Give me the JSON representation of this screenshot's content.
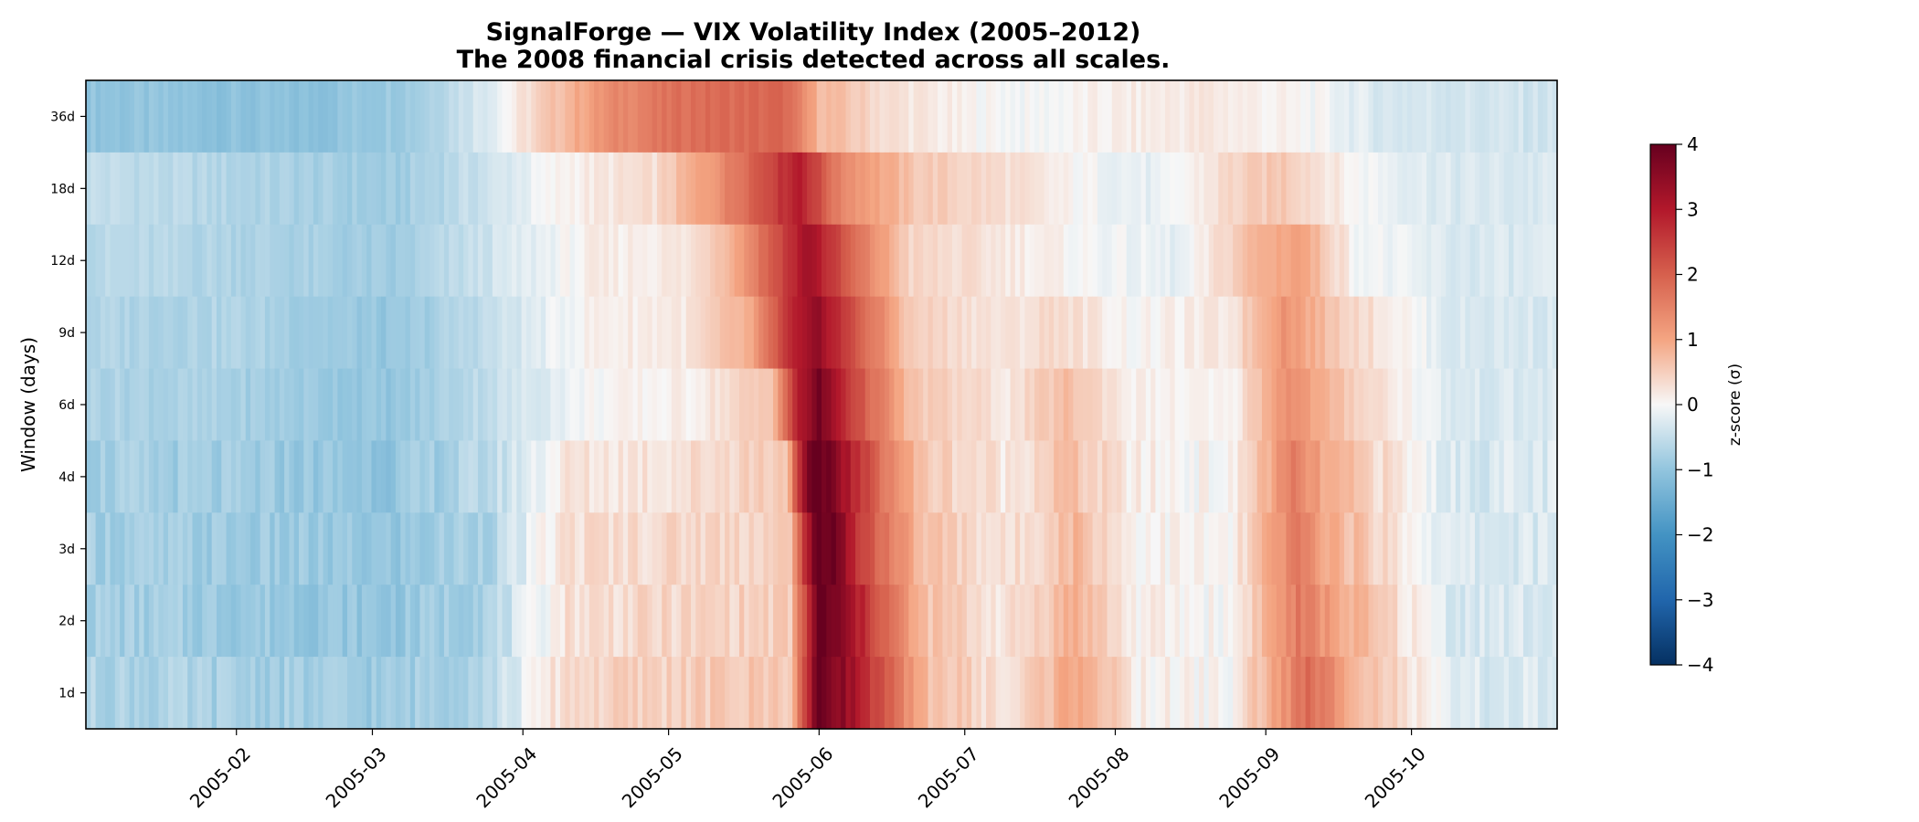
{
  "chart_data": {
    "type": "heatmap",
    "title": "SignalForge — VIX Volatility Index (2005–2012)",
    "subtitle": "The 2008 financial crisis detected across all scales.",
    "xlabel": "",
    "ylabel": "Window (days)",
    "x_start": "2005-01-01",
    "x_end": "2005-10-31",
    "x_ticks": [
      "2005-02",
      "2005-03",
      "2005-04",
      "2005-05",
      "2005-06",
      "2005-07",
      "2005-08",
      "2005-09",
      "2005-10"
    ],
    "x_tick_dates": [
      "2005-02-01",
      "2005-03-01",
      "2005-04-01",
      "2005-05-01",
      "2005-06-01",
      "2005-07-01",
      "2005-08-01",
      "2005-09-01",
      "2005-10-01"
    ],
    "y_categories": [
      "36d",
      "18d",
      "12d",
      "9d",
      "6d",
      "4d",
      "3d",
      "2d",
      "1d"
    ],
    "colorbar": {
      "label": "z-score (σ)",
      "range": [
        -4,
        4
      ],
      "ticks": [
        "4",
        "3",
        "2",
        "1",
        "0",
        "−1",
        "−2",
        "−3",
        "−4"
      ],
      "colormap": "RdBu_r"
    },
    "rows": [
      {
        "window": "36d",
        "points": [
          [
            "2005-01-01",
            -1.0
          ],
          [
            "2005-02-15",
            -1.1
          ],
          [
            "2005-03-10",
            -0.8
          ],
          [
            "2005-03-25",
            -0.2
          ],
          [
            "2005-04-05",
            0.5
          ],
          [
            "2005-04-20",
            1.4
          ],
          [
            "2005-05-05",
            1.8
          ],
          [
            "2005-05-25",
            1.9
          ],
          [
            "2005-06-01",
            0.8
          ],
          [
            "2005-06-15",
            0.3
          ],
          [
            "2005-07-01",
            0.05
          ],
          [
            "2005-07-15",
            -0.05
          ],
          [
            "2005-08-01",
            0.1
          ],
          [
            "2005-08-20",
            0.2
          ],
          [
            "2005-09-10",
            0.0
          ],
          [
            "2005-09-25",
            -0.3
          ],
          [
            "2005-10-31",
            -0.4
          ]
        ]
      },
      {
        "window": "18d",
        "points": [
          [
            "2005-01-01",
            -0.5
          ],
          [
            "2005-02-01",
            -0.7
          ],
          [
            "2005-03-05",
            -0.9
          ],
          [
            "2005-03-25",
            -0.4
          ],
          [
            "2005-04-10",
            0.1
          ],
          [
            "2005-04-28",
            0.3
          ],
          [
            "2005-05-10",
            1.2
          ],
          [
            "2005-05-20",
            2.2
          ],
          [
            "2005-05-28",
            3.0
          ],
          [
            "2005-06-05",
            1.5
          ],
          [
            "2005-06-20",
            0.6
          ],
          [
            "2005-07-10",
            0.3
          ],
          [
            "2005-07-25",
            0.0
          ],
          [
            "2005-08-10",
            -0.2
          ],
          [
            "2005-08-25",
            0.4
          ],
          [
            "2005-09-05",
            0.6
          ],
          [
            "2005-09-20",
            0.0
          ],
          [
            "2005-10-10",
            -0.3
          ],
          [
            "2005-10-31",
            -0.3
          ]
        ]
      },
      {
        "window": "12d",
        "points": [
          [
            "2005-01-01",
            -0.6
          ],
          [
            "2005-02-01",
            -0.7
          ],
          [
            "2005-03-05",
            -0.9
          ],
          [
            "2005-03-25",
            -0.4
          ],
          [
            "2005-04-15",
            0.1
          ],
          [
            "2005-05-05",
            0.2
          ],
          [
            "2005-05-15",
            1.0
          ],
          [
            "2005-05-25",
            2.5
          ],
          [
            "2005-05-30",
            3.3
          ],
          [
            "2005-06-08",
            1.8
          ],
          [
            "2005-06-20",
            0.4
          ],
          [
            "2005-07-10",
            0.2
          ],
          [
            "2005-07-25",
            0.0
          ],
          [
            "2005-08-15",
            -0.2
          ],
          [
            "2005-08-30",
            0.8
          ],
          [
            "2005-09-08",
            1.1
          ],
          [
            "2005-09-20",
            0.0
          ],
          [
            "2005-10-10",
            -0.3
          ],
          [
            "2005-10-31",
            -0.3
          ]
        ]
      },
      {
        "window": "9d",
        "points": [
          [
            "2005-01-01",
            -0.7
          ],
          [
            "2005-02-01",
            -0.7
          ],
          [
            "2005-03-05",
            -1.0
          ],
          [
            "2005-03-25",
            -0.5
          ],
          [
            "2005-04-15",
            0.1
          ],
          [
            "2005-05-05",
            0.2
          ],
          [
            "2005-05-18",
            0.9
          ],
          [
            "2005-05-26",
            2.7
          ],
          [
            "2005-06-01",
            3.4
          ],
          [
            "2005-06-08",
            2.2
          ],
          [
            "2005-06-20",
            0.5
          ],
          [
            "2005-07-10",
            0.2
          ],
          [
            "2005-07-20",
            0.4
          ],
          [
            "2005-08-05",
            0.0
          ],
          [
            "2005-08-25",
            0.2
          ],
          [
            "2005-09-05",
            1.3
          ],
          [
            "2005-09-15",
            0.6
          ],
          [
            "2005-10-10",
            -0.3
          ],
          [
            "2005-10-31",
            -0.3
          ]
        ]
      },
      {
        "window": "6d",
        "points": [
          [
            "2005-01-01",
            -0.7
          ],
          [
            "2005-02-01",
            -0.8
          ],
          [
            "2005-03-05",
            -1.0
          ],
          [
            "2005-03-25",
            -0.5
          ],
          [
            "2005-04-15",
            0.0
          ],
          [
            "2005-05-05",
            0.1
          ],
          [
            "2005-05-22",
            0.6
          ],
          [
            "2005-05-28",
            3.0
          ],
          [
            "2005-06-01",
            3.8
          ],
          [
            "2005-06-08",
            2.4
          ],
          [
            "2005-06-20",
            0.6
          ],
          [
            "2005-07-10",
            0.2
          ],
          [
            "2005-07-22",
            0.7
          ],
          [
            "2005-08-05",
            0.1
          ],
          [
            "2005-08-25",
            0.0
          ],
          [
            "2005-09-06",
            1.4
          ],
          [
            "2005-09-15",
            0.7
          ],
          [
            "2005-10-10",
            -0.3
          ],
          [
            "2005-10-31",
            -0.3
          ]
        ]
      },
      {
        "window": "4d",
        "points": [
          [
            "2005-01-01",
            -0.8
          ],
          [
            "2005-02-01",
            -0.9
          ],
          [
            "2005-03-05",
            -1.0
          ],
          [
            "2005-03-25",
            -0.6
          ],
          [
            "2005-04-10",
            0.2
          ],
          [
            "2005-05-05",
            0.3
          ],
          [
            "2005-05-25",
            0.6
          ],
          [
            "2005-05-30",
            3.8
          ],
          [
            "2005-06-03",
            3.9
          ],
          [
            "2005-06-10",
            2.4
          ],
          [
            "2005-06-22",
            0.6
          ],
          [
            "2005-07-10",
            0.2
          ],
          [
            "2005-07-22",
            0.7
          ],
          [
            "2005-08-05",
            0.1
          ],
          [
            "2005-08-25",
            0.0
          ],
          [
            "2005-09-07",
            1.5
          ],
          [
            "2005-09-15",
            0.8
          ],
          [
            "2005-10-10",
            -0.3
          ],
          [
            "2005-10-31",
            -0.3
          ]
        ]
      },
      {
        "window": "3d",
        "points": [
          [
            "2005-01-01",
            -0.8
          ],
          [
            "2005-02-01",
            -0.9
          ],
          [
            "2005-03-05",
            -1.0
          ],
          [
            "2005-03-25",
            -0.7
          ],
          [
            "2005-04-10",
            0.3
          ],
          [
            "2005-05-05",
            0.4
          ],
          [
            "2005-05-26",
            0.5
          ],
          [
            "2005-05-31",
            4.0
          ],
          [
            "2005-06-04",
            3.9
          ],
          [
            "2005-06-10",
            2.4
          ],
          [
            "2005-06-22",
            0.7
          ],
          [
            "2005-07-10",
            0.2
          ],
          [
            "2005-07-24",
            0.8
          ],
          [
            "2005-08-05",
            0.1
          ],
          [
            "2005-08-25",
            0.0
          ],
          [
            "2005-09-08",
            1.6
          ],
          [
            "2005-09-15",
            0.9
          ],
          [
            "2005-10-10",
            -0.3
          ],
          [
            "2005-10-31",
            -0.3
          ]
        ]
      },
      {
        "window": "2d",
        "points": [
          [
            "2005-01-01",
            -0.8
          ],
          [
            "2005-02-01",
            -0.9
          ],
          [
            "2005-03-05",
            -1.0
          ],
          [
            "2005-03-25",
            -0.7
          ],
          [
            "2005-04-10",
            0.3
          ],
          [
            "2005-05-05",
            0.4
          ],
          [
            "2005-05-26",
            0.5
          ],
          [
            "2005-06-01",
            4.0
          ],
          [
            "2005-06-05",
            3.6
          ],
          [
            "2005-06-12",
            2.4
          ],
          [
            "2005-06-22",
            0.7
          ],
          [
            "2005-07-10",
            0.2
          ],
          [
            "2005-07-24",
            0.9
          ],
          [
            "2005-08-05",
            0.1
          ],
          [
            "2005-08-25",
            0.0
          ],
          [
            "2005-09-08",
            1.6
          ],
          [
            "2005-09-18",
            0.9
          ],
          [
            "2005-10-10",
            -0.3
          ],
          [
            "2005-10-31",
            -0.3
          ]
        ]
      },
      {
        "window": "1d",
        "points": [
          [
            "2005-01-01",
            -0.7
          ],
          [
            "2005-02-01",
            -0.8
          ],
          [
            "2005-03-05",
            -0.9
          ],
          [
            "2005-03-25",
            -0.6
          ],
          [
            "2005-04-10",
            0.4
          ],
          [
            "2005-05-05",
            0.5
          ],
          [
            "2005-05-26",
            0.6
          ],
          [
            "2005-06-01",
            4.0
          ],
          [
            "2005-06-06",
            3.5
          ],
          [
            "2005-06-12",
            2.5
          ],
          [
            "2005-06-22",
            0.8
          ],
          [
            "2005-07-10",
            0.2
          ],
          [
            "2005-07-25",
            1.1
          ],
          [
            "2005-08-05",
            0.1
          ],
          [
            "2005-08-25",
            0.0
          ],
          [
            "2005-09-10",
            1.8
          ],
          [
            "2005-09-20",
            0.9
          ],
          [
            "2005-10-10",
            -0.3
          ],
          [
            "2005-10-31",
            -0.3
          ]
        ]
      }
    ]
  }
}
